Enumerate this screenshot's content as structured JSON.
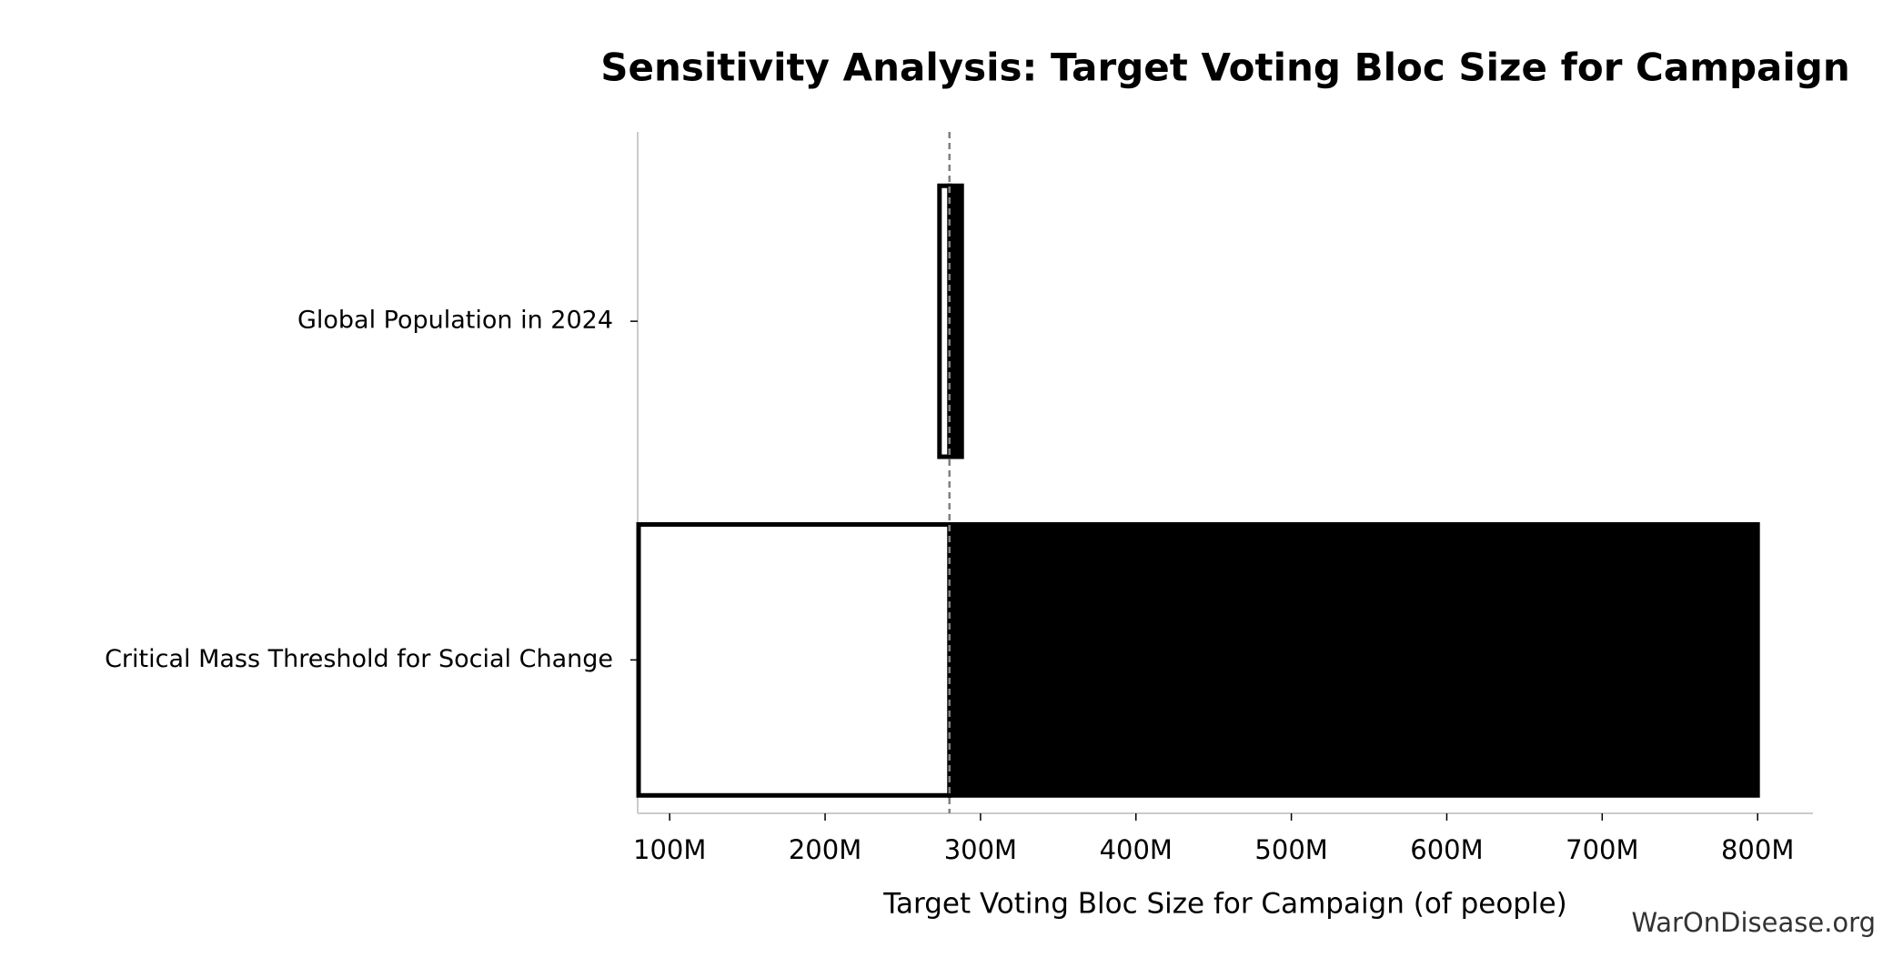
{
  "chart_data": {
    "type": "tornado",
    "title": "Sensitivity Analysis: Target Voting Bloc Size for Campaign",
    "xlabel": "Target Voting Bloc Size for Campaign (of people)",
    "watermark": "WarOnDisease.org",
    "categories": [
      "Global Population in 2024",
      "Critical Mass Threshold for Social Change"
    ],
    "low_values": [
      273600000,
      80000000
    ],
    "high_values": [
      287900000,
      800000000
    ],
    "baseline": 280000000,
    "low_color": "#ffffff",
    "high_color": "#000000",
    "xlim": [
      79400000,
      835600000
    ],
    "xticks": [
      {
        "value": 100000000,
        "label": "100M"
      },
      {
        "value": 200000000,
        "label": "200M"
      },
      {
        "value": 300000000,
        "label": "300M"
      },
      {
        "value": 400000000,
        "label": "400M"
      },
      {
        "value": 500000000,
        "label": "500M"
      },
      {
        "value": 600000000,
        "label": "600M"
      },
      {
        "value": 700000000,
        "label": "700M"
      },
      {
        "value": 800000000,
        "label": "800M"
      }
    ]
  }
}
